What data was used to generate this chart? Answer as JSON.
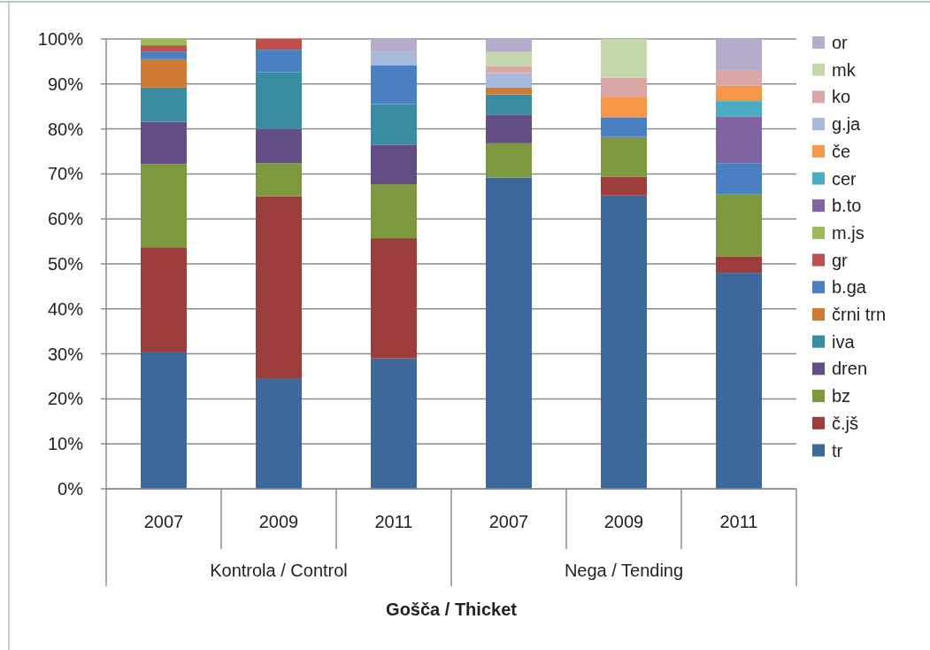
{
  "chart_data": {
    "type": "bar",
    "stacked": true,
    "xlabel": "Gošča / Thicket",
    "categories": [
      "2007",
      "2009",
      "2011",
      "2007",
      "2009",
      "2011"
    ],
    "annotations": [
      "Kontrola / Control",
      "Nega / Tending"
    ],
    "ylim": [
      0,
      100
    ],
    "yticks": [
      {
        "value": 0,
        "label": "0%"
      },
      {
        "value": 10,
        "label": "10%"
      },
      {
        "value": 20,
        "label": "20%"
      },
      {
        "value": 30,
        "label": "30%"
      },
      {
        "value": 40,
        "label": "40%"
      },
      {
        "value": 50,
        "label": "50%"
      },
      {
        "value": 60,
        "label": "60%"
      },
      {
        "value": 70,
        "label": "70%"
      },
      {
        "value": 80,
        "label": "80%"
      },
      {
        "value": 90,
        "label": "90%"
      },
      {
        "value": 100,
        "label": "100%"
      }
    ],
    "grid": "y",
    "legend": "right",
    "series": [
      {
        "name": "tr",
        "color": "#3e689b",
        "values": [
          30.5,
          24.6,
          29.0,
          69.2,
          65.2,
          48.0
        ]
      },
      {
        "name": "č.jš",
        "color": "#9b3d3b",
        "values": [
          23.2,
          40.4,
          26.7,
          null,
          4.2,
          3.6
        ]
      },
      {
        "name": "bz",
        "color": "#7d983e",
        "values": [
          18.5,
          7.4,
          12.0,
          7.6,
          8.8,
          13.8
        ]
      },
      {
        "name": "dren",
        "color": "#634d84",
        "values": [
          9.4,
          7.6,
          8.8,
          6.3,
          null,
          null
        ]
      },
      {
        "name": "iva",
        "color": "#3a8da1",
        "values": [
          7.6,
          12.6,
          9.0,
          4.6,
          null,
          null
        ]
      },
      {
        "name": "črni trn",
        "color": "#d07b33",
        "values": [
          6.3,
          null,
          null,
          1.5,
          null,
          null
        ]
      },
      {
        "name": "b.ga",
        "color": "#4a7fc1",
        "values": [
          1.7,
          5.0,
          8.7,
          null,
          4.4,
          7.0
        ]
      },
      {
        "name": "gr",
        "color": "#c0504d",
        "values": [
          1.4,
          2.4,
          null,
          null,
          null,
          null
        ]
      },
      {
        "name": "m.js",
        "color": "#9bbb59",
        "values": [
          1.4,
          null,
          null,
          null,
          null,
          null
        ]
      },
      {
        "name": "b.to",
        "color": "#8064a2",
        "values": [
          null,
          null,
          null,
          null,
          null,
          10.3
        ]
      },
      {
        "name": "cer",
        "color": "#4bacc6",
        "values": [
          null,
          null,
          null,
          null,
          null,
          3.5
        ]
      },
      {
        "name": "če",
        "color": "#f79646",
        "values": [
          null,
          null,
          null,
          null,
          4.4,
          3.4
        ]
      },
      {
        "name": "g.ja",
        "color": "#a7b9dd",
        "values": [
          null,
          null,
          3.0,
          3.2,
          null,
          null
        ]
      },
      {
        "name": "ko",
        "color": "#d9a8a6",
        "values": [
          null,
          null,
          null,
          1.6,
          4.4,
          3.5
        ]
      },
      {
        "name": "mk",
        "color": "#c5d7ad",
        "values": [
          null,
          null,
          null,
          3.1,
          8.6,
          null
        ]
      },
      {
        "name": "or",
        "color": "#b7abcc",
        "values": [
          null,
          null,
          2.8,
          2.9,
          null,
          6.9
        ]
      }
    ]
  }
}
